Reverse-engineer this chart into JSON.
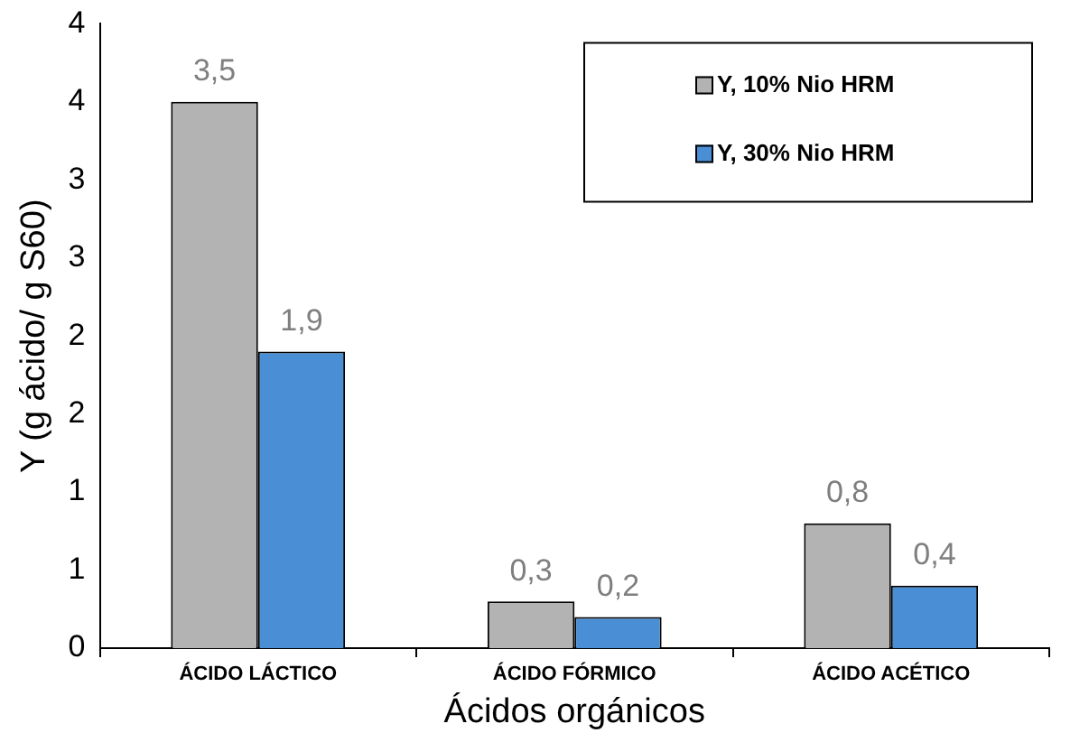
{
  "chart_data": {
    "type": "bar",
    "xlabel": "Ácidos orgánicos",
    "ylabel": "Y (g ácido/ g S60)",
    "categories": [
      "ÁCIDO LÁCTICO",
      "ÁCIDO FÓRMICO",
      "ÁCIDO ACÉTICO"
    ],
    "series": [
      {
        "name": "Y, 10% Nio HRM",
        "color": "#b3b3b3",
        "values": [
          3.5,
          0.3,
          0.8
        ],
        "value_labels": [
          "3,5",
          "0,3",
          "0,8"
        ]
      },
      {
        "name": "Y, 30% Nio HRM",
        "color": "#4a8fd6",
        "values": [
          1.9,
          0.2,
          0.4
        ],
        "value_labels": [
          "1,9",
          "0,2",
          "0,4"
        ]
      }
    ],
    "ylim": [
      0,
      4
    ],
    "yticks": [
      0,
      {
        "value": 0.5,
        "label": "1"
      },
      1,
      {
        "value": 1.5,
        "label": "2"
      },
      2,
      {
        "value": 2.5,
        "label": "3"
      },
      3,
      {
        "value": 3.5,
        "label": "4"
      },
      4
    ],
    "grid": false,
    "legend": "top right"
  }
}
